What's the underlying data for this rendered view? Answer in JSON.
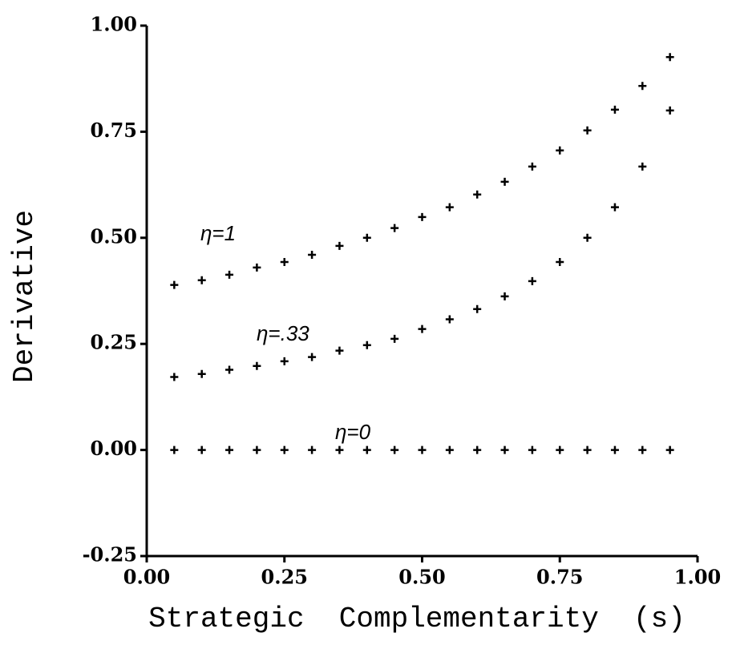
{
  "chart_data": {
    "type": "scatter",
    "x_label": "Strategic  Complementarity  (s)",
    "y_label": "Derivative",
    "xlim": [
      0,
      1
    ],
    "ylim": [
      -0.25,
      1
    ],
    "xticks": [
      {
        "value": 0,
        "label": "0.00"
      },
      {
        "value": 0.25,
        "label": "0.25"
      },
      {
        "value": 0.5,
        "label": "0.50"
      },
      {
        "value": 0.75,
        "label": "0.75"
      },
      {
        "value": 1,
        "label": "1.00"
      }
    ],
    "yticks": [
      {
        "value": -0.25,
        "label": "-0.25"
      },
      {
        "value": 0,
        "label": "0.00"
      },
      {
        "value": 0.25,
        "label": "0.25"
      },
      {
        "value": 0.5,
        "label": "0.50"
      },
      {
        "value": 0.75,
        "label": "0.75"
      },
      {
        "value": 1,
        "label": "1.00"
      }
    ],
    "x": [
      0.05,
      0.1,
      0.15,
      0.2,
      0.25,
      0.3,
      0.35,
      0.4,
      0.45,
      0.5,
      0.55,
      0.6,
      0.65,
      0.7,
      0.75,
      0.8,
      0.85,
      0.9,
      0.95
    ],
    "series": [
      {
        "name": "η=1",
        "color": "#000000",
        "values": [
          0.389,
          0.4,
          0.413,
          0.43,
          0.443,
          0.46,
          0.481,
          0.5,
          0.523,
          0.549,
          0.572,
          0.602,
          0.632,
          0.668,
          0.706,
          0.753,
          0.802,
          0.858,
          0.926
        ]
      },
      {
        "name": "η=.33",
        "color": "#000000",
        "values": [
          0.172,
          0.179,
          0.189,
          0.198,
          0.209,
          0.219,
          0.234,
          0.247,
          0.262,
          0.285,
          0.308,
          0.332,
          0.362,
          0.398,
          0.443,
          0.5,
          0.572,
          0.668,
          0.8
        ]
      },
      {
        "name": "η=0",
        "color": "#000000",
        "values": [
          0,
          0,
          0,
          0,
          0,
          0,
          0,
          0,
          0,
          0,
          0,
          0,
          0,
          0,
          0,
          0,
          0,
          0,
          0
        ]
      }
    ]
  }
}
